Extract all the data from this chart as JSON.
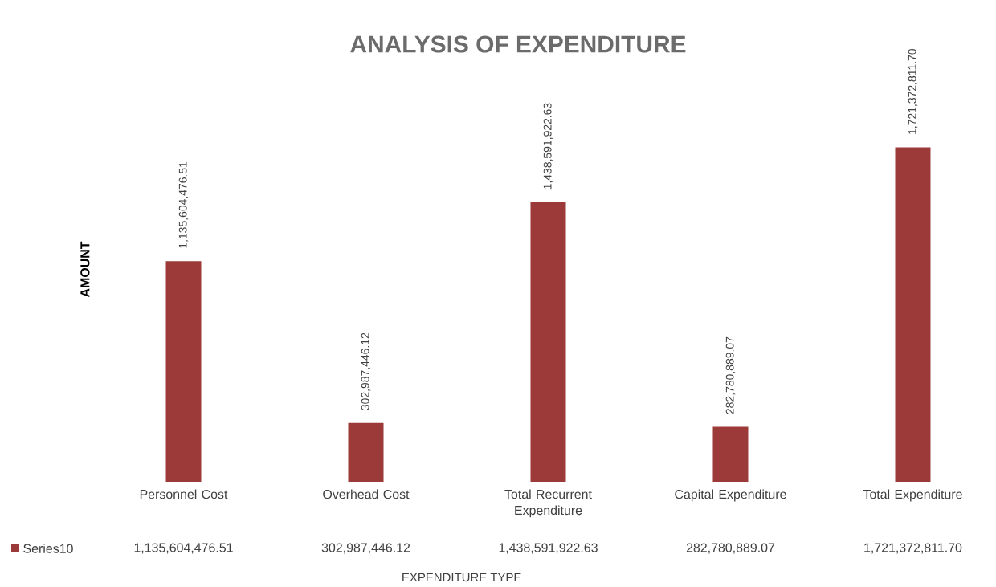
{
  "chart_data": {
    "type": "bar",
    "title": "ANALYSIS OF EXPENDITURE",
    "xlabel": "EXPENDITURE TYPE",
    "ylabel": "AMOUNT",
    "categories": [
      "Personnel Cost",
      "Overhead Cost",
      "Total Recurrent Expenditure",
      "Capital Expenditure",
      "Total Expenditure"
    ],
    "series": [
      {
        "name": "Series10",
        "color": "#9b3a38",
        "values": [
          1135604476.51,
          302987446.12,
          1438591922.63,
          282780889.07,
          1721372811.7
        ],
        "value_labels": [
          "1,135,604,476.51",
          "302,987,446.12",
          "1,438,591,922.63",
          "282,780,889.07",
          "1,721,372,811.70"
        ]
      }
    ],
    "legend": "bottom left"
  }
}
